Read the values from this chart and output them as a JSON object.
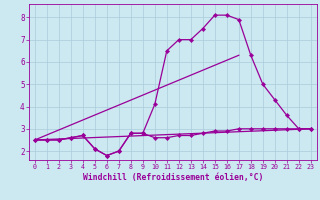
{
  "bg_color": "#cce8f0",
  "grid_color": "#aaccdd",
  "line_color": "#990099",
  "marker": "D",
  "markersize": 2.2,
  "linewidth": 0.9,
  "xlim": [
    -0.5,
    23.5
  ],
  "ylim": [
    1.6,
    8.6
  ],
  "xlabel": "Windchill (Refroidissement éolien,°C)",
  "xlabel_fontsize": 5.8,
  "xtick_fontsize": 4.8,
  "ytick_fontsize": 5.5,
  "series1_x": [
    0,
    1,
    2,
    3,
    4,
    5,
    6,
    7,
    8,
    9,
    10,
    11,
    12,
    13,
    14,
    15,
    16,
    17,
    18,
    19,
    20,
    21,
    22,
    23
  ],
  "series1_y": [
    2.5,
    2.5,
    2.5,
    2.6,
    2.7,
    2.1,
    1.8,
    2.0,
    2.8,
    2.8,
    2.6,
    2.6,
    2.7,
    2.7,
    2.8,
    2.9,
    2.9,
    3.0,
    3.0,
    3.0,
    3.0,
    3.0,
    3.0,
    3.0
  ],
  "series2_x": [
    0,
    1,
    2,
    3,
    4,
    5,
    6,
    7,
    8,
    9,
    10,
    11,
    12,
    13,
    14,
    15,
    16,
    17,
    18,
    19,
    20,
    21,
    22,
    23
  ],
  "series2_y": [
    2.5,
    2.5,
    2.5,
    2.6,
    2.7,
    2.1,
    1.8,
    2.0,
    2.8,
    2.8,
    4.1,
    6.5,
    7.0,
    7.0,
    7.5,
    8.1,
    8.1,
    7.9,
    6.3,
    5.0,
    4.3,
    3.6,
    3.0,
    3.0
  ],
  "series3_x": [
    0,
    23
  ],
  "series3_y": [
    2.5,
    3.0
  ],
  "series4_x": [
    0,
    17
  ],
  "series4_y": [
    2.5,
    6.3
  ]
}
